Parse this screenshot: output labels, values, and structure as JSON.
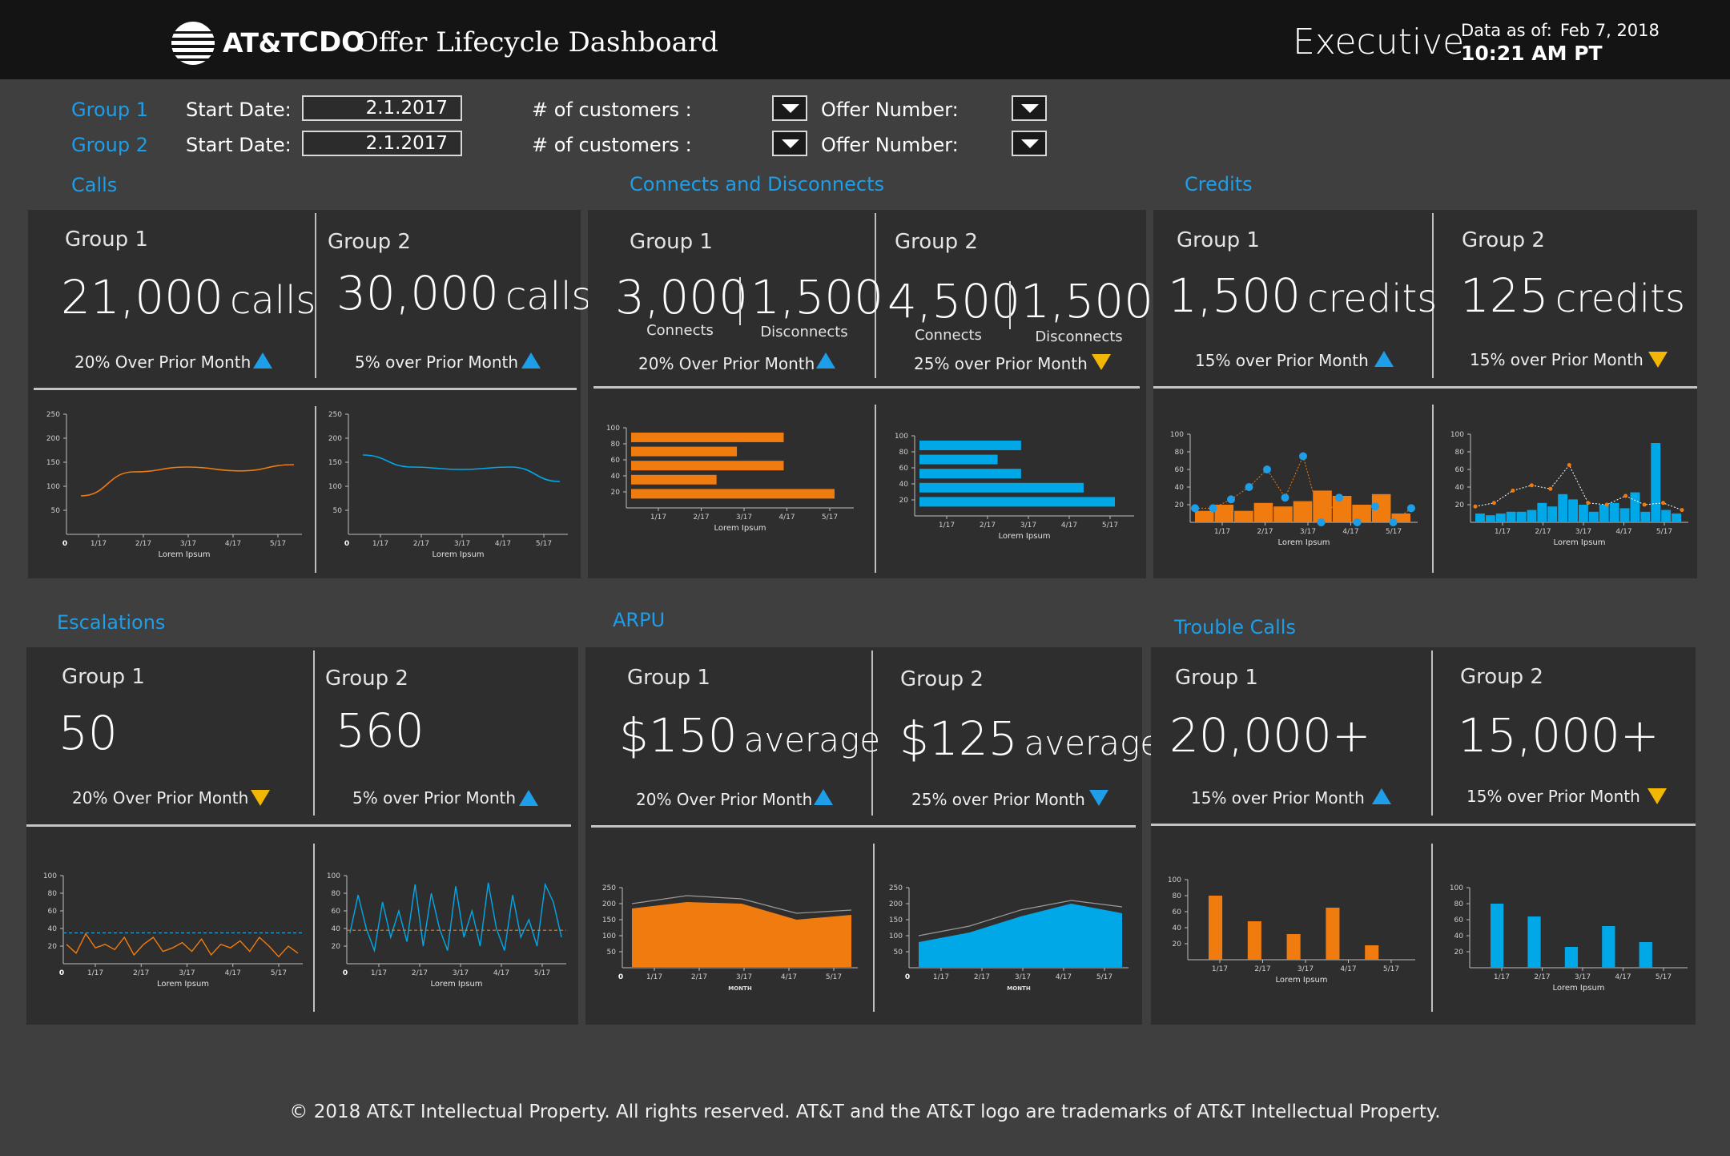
{
  "header": {
    "brand": "AT&T",
    "prefix": "CDO",
    "title": "Offer Lifecycle Dashboard",
    "role": "Executive",
    "as_of_label": "Data as of:",
    "as_of_date": "Feb 7, 2018",
    "as_of_time": "10:21 AM PT"
  },
  "filters": [
    {
      "group": "Group 1",
      "start_label": "Start Date:",
      "start_value": "2.1.2017",
      "customers_label": "# of customers :",
      "offer_label": "Offer Number:"
    },
    {
      "group": "Group 2",
      "start_label": "Start Date:",
      "start_value": "2.1.2017",
      "customers_label": "# of customers :",
      "offer_label": "Offer Number:"
    }
  ],
  "colors": {
    "orange": "#f07b0f",
    "blue": "#00a8e8",
    "up": "#1e9ee8",
    "down_yellow": "#f2b705"
  },
  "sections": {
    "calls": {
      "title": "Calls",
      "groups": [
        {
          "name": "Group 1",
          "value": "21,000",
          "unit": "calls",
          "change": "20% Over Prior Month",
          "trend": "up"
        },
        {
          "name": "Group 2",
          "value": "30,000",
          "unit": "calls",
          "change": "5% over Prior Month",
          "trend": "up"
        }
      ]
    },
    "connects": {
      "title": "Connects and Disconnects",
      "groups": [
        {
          "name": "Group 1",
          "connects": "3,000",
          "connects_label": "Connects",
          "disconnects": "1,500",
          "disconnects_label": "Disconnects",
          "change": "20% Over Prior Month",
          "trend": "up"
        },
        {
          "name": "Group 2",
          "connects": "4,500",
          "connects_label": "Connects",
          "disconnects": "1,500",
          "disconnects_label": "Disconnects",
          "change": "25% over Prior Month",
          "trend": "down-yellow"
        }
      ]
    },
    "credits": {
      "title": "Credits",
      "groups": [
        {
          "name": "Group 1",
          "value": "1,500",
          "unit": "credits",
          "change": "15% over Prior Month",
          "trend": "up"
        },
        {
          "name": "Group 2",
          "value": "125",
          "unit": "credits",
          "change": "15% over Prior Month",
          "trend": "down-yellow"
        }
      ]
    },
    "escalations": {
      "title": "Escalations",
      "groups": [
        {
          "name": "Group 1",
          "value": "50",
          "unit": "",
          "change": "20% Over Prior Month",
          "trend": "down-yellow"
        },
        {
          "name": "Group 2",
          "value": "560",
          "unit": "",
          "change": "5% over Prior Month",
          "trend": "up"
        }
      ]
    },
    "arpu": {
      "title": "ARPU",
      "groups": [
        {
          "name": "Group 1",
          "value": "$150",
          "unit": "average",
          "change": "20% Over Prior Month",
          "trend": "up"
        },
        {
          "name": "Group 2",
          "value": "$125",
          "unit": "average",
          "change": "25% over Prior Month",
          "trend": "down-blue"
        }
      ]
    },
    "trouble": {
      "title": "Trouble Calls",
      "groups": [
        {
          "name": "Group 1",
          "value": "20,000+",
          "unit": "",
          "change": "15% over Prior Month",
          "trend": "up"
        },
        {
          "name": "Group 2",
          "value": "15,000+",
          "unit": "",
          "change": "15% over Prior Month",
          "trend": "down-yellow"
        }
      ]
    }
  },
  "chart_data": [
    {
      "id": "calls-g1",
      "type": "line",
      "color": "orange",
      "x": [
        "1/17",
        "2/17",
        "3/17",
        "4/17",
        "5/17"
      ],
      "y": [
        80,
        130,
        140,
        132,
        145
      ],
      "yticks": [
        0,
        50,
        100,
        150,
        200,
        250
      ],
      "ylim": [
        0,
        250
      ],
      "xlabel": "Lorem Ipsum"
    },
    {
      "id": "calls-g2",
      "type": "line",
      "color": "blue",
      "x": [
        "1/17",
        "2/17",
        "3/17",
        "4/17",
        "5/17"
      ],
      "y": [
        165,
        140,
        135,
        140,
        110
      ],
      "yticks": [
        0,
        50,
        100,
        150,
        200,
        250
      ],
      "ylim": [
        0,
        250
      ],
      "xlabel": "Lorem Ipsum"
    },
    {
      "id": "conn-g1",
      "type": "bar-horizontal",
      "color": "orange",
      "values": [
        75,
        52,
        75,
        42,
        100
      ],
      "yticks": [
        20,
        40,
        60,
        80,
        100
      ],
      "ylim": [
        0,
        100
      ],
      "xticks": [
        "1/17",
        "2/17",
        "3/17",
        "4/17",
        "5/17"
      ],
      "xlabel": "Lorem Ipsum"
    },
    {
      "id": "conn-g2",
      "type": "bar-horizontal",
      "color": "blue",
      "values": [
        52,
        40,
        52,
        84,
        100
      ],
      "yticks": [
        20,
        40,
        60,
        80,
        100
      ],
      "ylim": [
        0,
        100
      ],
      "xticks": [
        "1/17",
        "2/17",
        "3/17",
        "4/17",
        "5/17"
      ],
      "xlabel": "Lorem Ipsum"
    },
    {
      "id": "cred-g1",
      "type": "bar",
      "color": "orange",
      "bars": [
        13,
        20,
        13,
        22,
        18,
        24,
        36,
        30,
        20,
        32,
        10
      ],
      "dots": [
        16,
        16,
        26,
        40,
        60,
        28,
        75,
        0,
        28,
        0,
        18,
        0,
        16
      ],
      "yticks": [
        20,
        40,
        60,
        80,
        100
      ],
      "ylim": [
        0,
        100
      ],
      "xticks": [
        "1/17",
        "2/17",
        "3/17",
        "4/17",
        "5/17"
      ],
      "xlabel": "Lorem Ipsum"
    },
    {
      "id": "cred-g2",
      "type": "bar",
      "color": "blue",
      "bars": [
        10,
        8,
        10,
        12,
        12,
        14,
        22,
        18,
        32,
        26,
        20,
        12,
        20,
        22,
        16,
        34,
        12,
        90,
        14,
        10
      ],
      "dots": [
        18,
        22,
        36,
        42,
        38,
        65,
        22,
        20,
        30,
        20,
        22,
        14
      ],
      "yticks": [
        20,
        40,
        60,
        80,
        100
      ],
      "ylim": [
        0,
        100
      ],
      "xticks": [
        "1/17",
        "2/17",
        "3/17",
        "4/17",
        "5/17"
      ],
      "xlabel": "Lorem Ipsum"
    },
    {
      "id": "esc-g1",
      "type": "line",
      "color": "orange",
      "y": [
        22,
        12,
        34,
        18,
        22,
        16,
        30,
        10,
        22,
        30,
        14,
        18,
        24,
        14,
        28,
        10,
        22,
        18,
        26,
        14,
        30,
        20,
        8,
        20,
        12
      ],
      "ref": 35,
      "yticks": [
        0,
        20,
        40,
        60,
        80,
        100
      ],
      "ylim": [
        0,
        100
      ],
      "xticks": [
        "1/17",
        "2/17",
        "3/17",
        "4/17",
        "5/17"
      ],
      "xlabel": "Lorem Ipsum"
    },
    {
      "id": "esc-g2",
      "type": "line",
      "color": "blue",
      "y": [
        35,
        78,
        40,
        15,
        70,
        30,
        60,
        25,
        90,
        20,
        80,
        40,
        15,
        88,
        30,
        60,
        20,
        92,
        40,
        15,
        78,
        30,
        50,
        20,
        90,
        70,
        30
      ],
      "ref": 38,
      "yticks": [
        0,
        20,
        40,
        60,
        80,
        100
      ],
      "ylim": [
        0,
        100
      ],
      "xticks": [
        "1/17",
        "2/17",
        "3/17",
        "4/17",
        "5/17"
      ],
      "xlabel": "Lorem Ipsum"
    },
    {
      "id": "arpu-g1",
      "type": "area",
      "color": "orange",
      "y": [
        185,
        205,
        200,
        150,
        165
      ],
      "line": [
        200,
        225,
        215,
        170,
        180
      ],
      "yticks": [
        0,
        50,
        100,
        150,
        200,
        250
      ],
      "ylim": [
        0,
        250
      ],
      "xticks": [
        "1/17",
        "2/17",
        "3/17",
        "4/17",
        "5/17"
      ],
      "xlabel": "MONTH"
    },
    {
      "id": "arpu-g2",
      "type": "area",
      "color": "blue",
      "y": [
        80,
        110,
        160,
        200,
        170
      ],
      "line": [
        100,
        130,
        180,
        210,
        190
      ],
      "yticks": [
        0,
        50,
        100,
        150,
        200,
        250
      ],
      "ylim": [
        0,
        250
      ],
      "xticks": [
        "1/17",
        "2/17",
        "3/17",
        "4/17",
        "5/17"
      ],
      "xlabel": "MONTH"
    },
    {
      "id": "tr-g1",
      "type": "bar",
      "color": "orange",
      "values": [
        80,
        48,
        32,
        65,
        18
      ],
      "yticks": [
        20,
        40,
        60,
        80,
        100
      ],
      "ylim": [
        0,
        100
      ],
      "xticks": [
        "1/17",
        "2/17",
        "3/17",
        "4/17",
        "5/17"
      ],
      "xlabel": "Lorem Ipsum"
    },
    {
      "id": "tr-g2",
      "type": "bar",
      "color": "blue",
      "values": [
        80,
        64,
        26,
        52,
        32
      ],
      "yticks": [
        20,
        40,
        60,
        80,
        100
      ],
      "ylim": [
        0,
        100
      ],
      "xticks": [
        "1/17",
        "2/17",
        "3/17",
        "4/17",
        "5/17"
      ],
      "xlabel": "Lorem Ipsum"
    }
  ],
  "footer": "© 2018 AT&T Intellectual Property. All rights reserved.  AT&T and the AT&T logo are trademarks of AT&T Intellectual Property."
}
